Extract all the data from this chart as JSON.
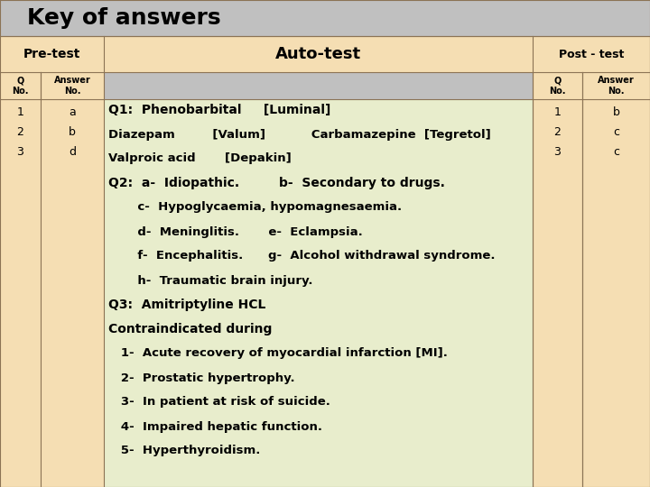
{
  "title": "Key of answers",
  "title_bg": "#c0c0c0",
  "header_bg": "#f5deb3",
  "content_bg": "#e8edcc",
  "pretest_bg": "#f5deb3",
  "posttest_bg": "#f5deb3",
  "pre_test_label": "Pre-test",
  "auto_test_label": "Auto-test",
  "post_test_label": "Post - test",
  "pre_q_header": "Q\nNo.",
  "pre_ans_header": "Answer\nNo.",
  "post_q_header": "Q\nNo.",
  "post_ans_header": "Answer\nNo.",
  "pre_q": [
    "1",
    "2",
    "3"
  ],
  "pre_ans": [
    "a",
    "b",
    "d"
  ],
  "post_q": [
    "1",
    "2",
    "3"
  ],
  "post_ans": [
    "b",
    "c",
    "c"
  ],
  "auto_content": [
    "Q1:  Phenobarbital     [Luminal]",
    "Diazepam         [Valum]           Carbamazepine  [Tegretol]",
    "Valproic acid       [Depakin]",
    "Q2:  a-  Idiopathic.         b-  Secondary to drugs.",
    "       c-  Hypoglycaemia, hypomagnesaemia.",
    "       d-  Meninglitis.       e-  Eclampsia.",
    "       f-  Encephalitis.      g-  Alcohol withdrawal syndrome.",
    "       h-  Traumatic brain injury.",
    "Q3:  Amitriptyline HCL",
    "Contraindicated during",
    "   1-  Acute recovery of myocardial infarction [MI].",
    "   2-  Prostatic hypertrophy.",
    "   3-  In patient at risk of suicide.",
    "   4-  Impaired hepatic function.",
    "   5-  Hyperthyroidism."
  ],
  "bold_lines": [
    0,
    1,
    2,
    3,
    8,
    9,
    10,
    11,
    12,
    13,
    14
  ]
}
